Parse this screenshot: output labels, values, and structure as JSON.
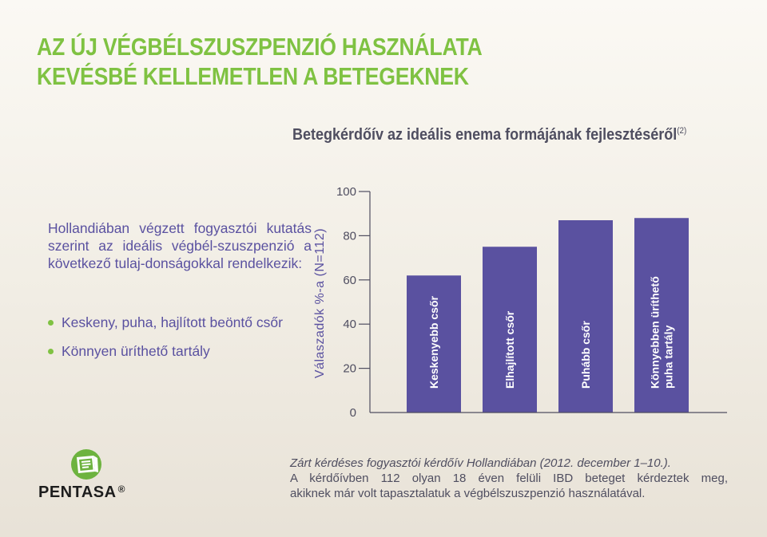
{
  "title": {
    "line1": "AZ ÚJ VÉGBÉLSZUSZPENZIÓ HASZNÁLATA",
    "line2": "KEVÉSBÉ KELLEMETLEN A BETEGEKNEK"
  },
  "subtitle": {
    "text": "Betegkérdőív az ideális enema formájának fejlesztéséről",
    "ref": "(2)"
  },
  "intro": "Hollandiában végzett fogyasztói kutatás szerint az ideális végbél-szuszpenzió a következő tulaj-donságokkal rendelkezik:",
  "bullets": [
    "Keskeny, puha, hajlított beöntő csőr",
    "Könnyen üríthető tartály"
  ],
  "colors": {
    "title_green": "#7fc242",
    "bar_purple": "#5a51a0",
    "text_purple": "#5a51a0",
    "dark_text": "#4f4e60"
  },
  "chart_data": {
    "type": "bar",
    "ylabel": "Válaszadók %-a (N=112)",
    "ylim": [
      0,
      100
    ],
    "yticks": [
      0,
      20,
      40,
      60,
      80,
      100
    ],
    "categories": [
      "Keskenyebb csőr",
      "Elhajlított  csőr",
      "Puhább csőr",
      "Könnyebben üríthető puha tartály"
    ],
    "category_lines": [
      [
        "Keskenyebb csőr"
      ],
      [
        "Elhajlított  csőr"
      ],
      [
        "Puhább csőr"
      ],
      [
        "Könnyebben üríthető",
        "puha tartály"
      ]
    ],
    "values": [
      62,
      75,
      87,
      88
    ],
    "bar_color": "#5a51a0"
  },
  "logo": {
    "icon": "pentasa-box-icon",
    "name": "PENTASA",
    "mark": "®"
  },
  "footnote": {
    "line1": "Zárt kérdéses fogyasztói kérdőív Hollandiában (2012. december 1–10.).",
    "line2": "A kérdőívben 112 olyan 18 éven felüli IBD beteget kérdeztek meg,",
    "line3": "akiknek már volt tapasztalatuk a végbélszuszpenzió használatával."
  }
}
